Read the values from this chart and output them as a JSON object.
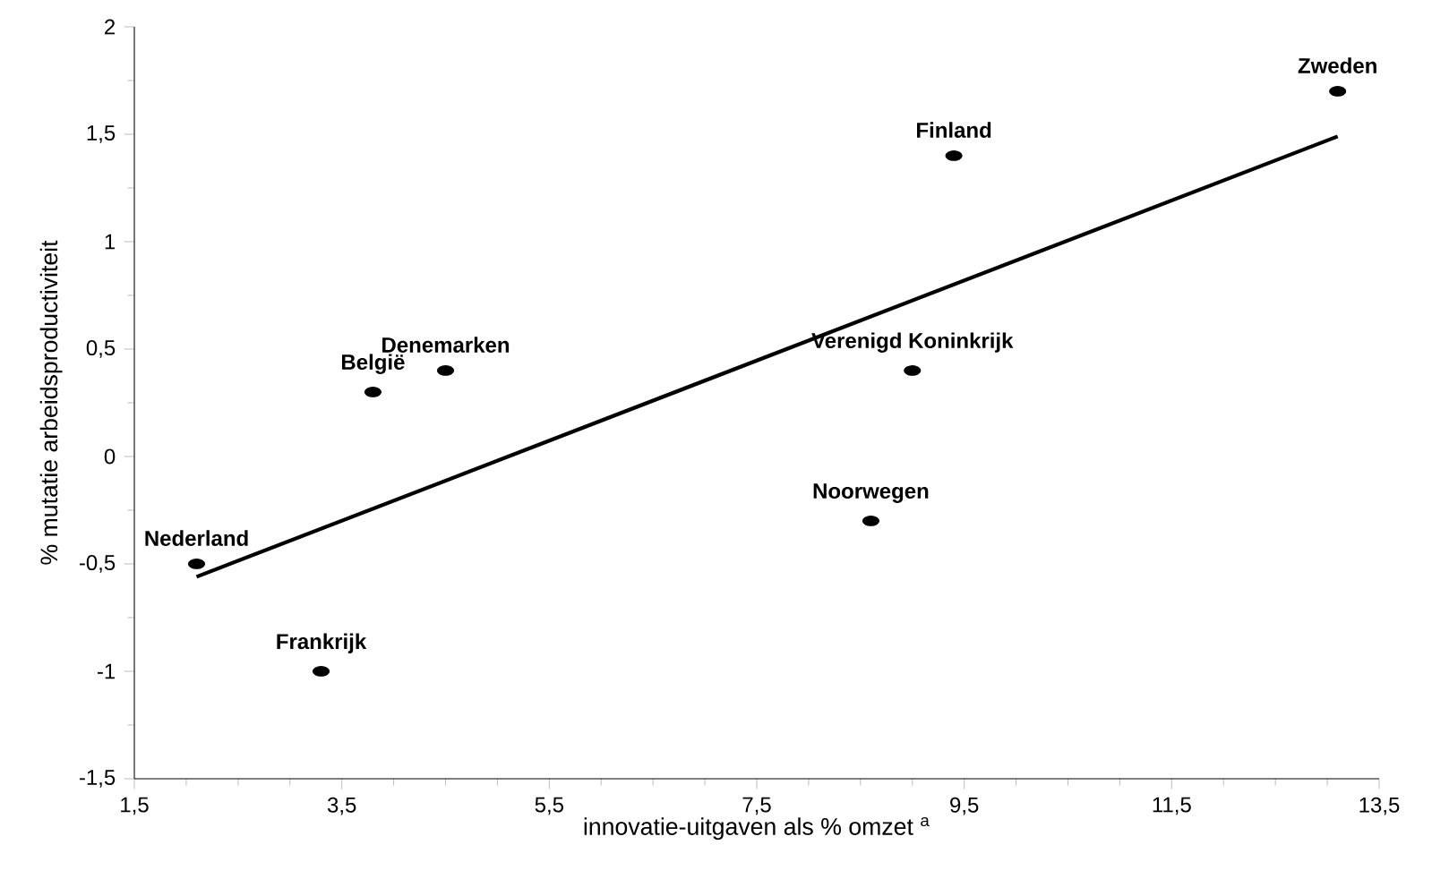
{
  "chart_data": {
    "type": "scatter",
    "xlabel": "innovatie-uitgaven als % omzet $^{a}$",
    "ylabel": "% mutatie arbeidsproductiviteit",
    "series": [
      {
        "color": "#000000",
        "marker": "circle",
        "x": [
          2.1,
          3.3,
          3.8,
          4.5,
          8.6,
          9.0,
          9.4,
          13.1
        ],
        "values": [
          -0.5,
          -1.0,
          0.3,
          0.4,
          -0.3,
          0.4,
          1.4,
          1.7
        ]
      },
      {
        "type": "line",
        "color": "#000000",
        "marker": "none",
        "x": [
          2.1,
          13.1
        ],
        "values": [
          -0.56,
          1.49
        ]
      }
    ],
    "annotations": [
      {
        "text": "Nederland",
        "x": 2.1,
        "y": -0.5
      },
      {
        "text": "Frankrijk",
        "x": 3.3,
        "y": -1.0
      },
      {
        "text": "België",
        "x": 3.8,
        "y": 0.3
      },
      {
        "text": "Denemarken",
        "x": 4.5,
        "y": 0.4
      },
      {
        "text": "Noorwegen",
        "x": 8.6,
        "y": -0.3
      },
      {
        "text": "Verenigd Koninkrijk",
        "x": 9.0,
        "y": 0.4
      },
      {
        "text": "Finland",
        "x": 9.4,
        "y": 1.4
      },
      {
        "text": "Zweden",
        "x": 13.1,
        "y": 1.7
      }
    ],
    "xlim": [
      1.5,
      13.5
    ],
    "ylim": [
      -1.5,
      2
    ],
    "xticks": [
      {
        "value": 1.5,
        "label": "1,5"
      },
      {
        "value": 3.5,
        "label": "3,5"
      },
      {
        "value": 5.5,
        "label": "5,5"
      },
      {
        "value": 7.5,
        "label": "7,5"
      },
      {
        "value": 9.5,
        "label": "9,5"
      },
      {
        "value": 11.5,
        "label": "11,5"
      },
      {
        "value": 13.5,
        "label": "13,5"
      }
    ],
    "yticks": [
      {
        "value": -1.5,
        "label": "-1,5"
      },
      -1,
      {
        "value": -0.5,
        "label": "-0,5"
      },
      0,
      {
        "value": 0.5,
        "label": "0,5"
      },
      1,
      {
        "value": 1.5,
        "label": "1,5"
      },
      2
    ],
    "grid": false
  }
}
